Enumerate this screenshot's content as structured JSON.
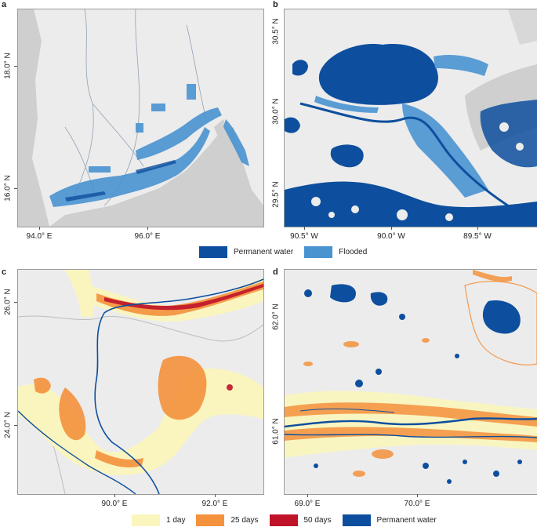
{
  "panels": {
    "a": {
      "letter": "a",
      "x_ticks": [
        "94.0° E",
        "96.0° E"
      ],
      "y_ticks": [
        "18.0° N",
        "16.0° N"
      ]
    },
    "b": {
      "letter": "b",
      "x_ticks": [
        "90.5° W",
        "90.0° W",
        "89.5° W"
      ],
      "y_ticks": [
        "30.5° N",
        "30.0° N",
        "29.5° N"
      ]
    },
    "c": {
      "letter": "c",
      "x_ticks": [
        "90.0° E",
        "92.0° E"
      ],
      "y_ticks": [
        "26.0° N",
        "24.0° N"
      ]
    },
    "d": {
      "letter": "d",
      "x_ticks": [
        "69.0° E",
        "70.0° E"
      ],
      "y_ticks": [
        "62.0° N",
        "61.0° N"
      ]
    }
  },
  "legend_top": [
    {
      "label": "Permanent water",
      "color": "#0d4f9e"
    },
    {
      "label": "Flooded",
      "color": "#4a93d1"
    }
  ],
  "legend_bottom": [
    {
      "label": "1 day",
      "color": "#fbf6bd"
    },
    {
      "label": "25 days",
      "color": "#f4923d"
    },
    {
      "label": "50 days",
      "color": "#c0132a"
    },
    {
      "label": "Permanent water",
      "color": "#0d4f9e"
    }
  ],
  "colors": {
    "land": "#ececec",
    "sea": "#cfcfcf",
    "permanent_water": "#0d4f9e",
    "flooded": "#4a93d1"
  }
}
